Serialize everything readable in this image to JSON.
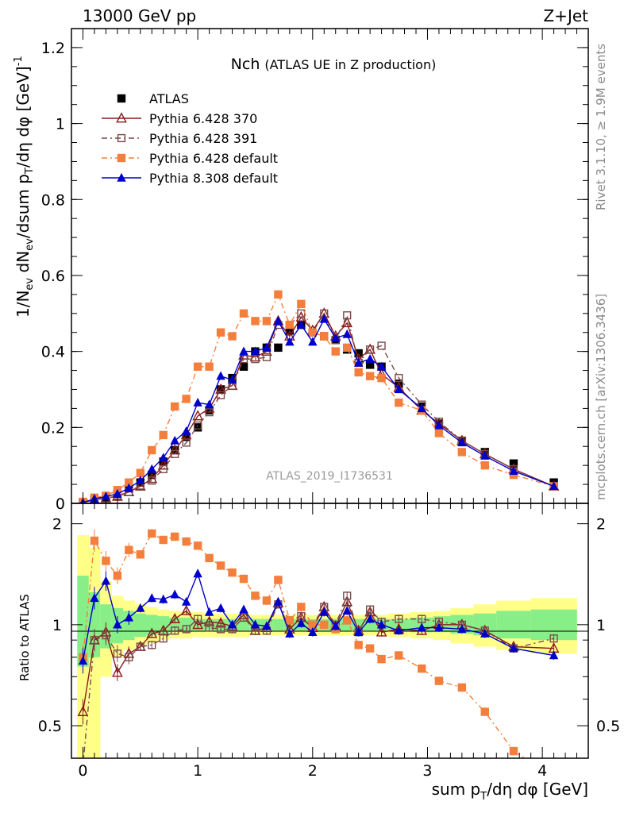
{
  "header": {
    "left": "13000 GeV pp",
    "right": "Z+Jet"
  },
  "side_labels": {
    "rivet": "Rivet 3.1.10, ≥ 1.9M events",
    "mcplots": "mcplots.cern.ch [arXiv:1306.3436]"
  },
  "analysis_id": "ATLAS_2019_I1736531",
  "chart_data": [
    {
      "type": "line",
      "panel": "main",
      "title": "Nch",
      "subtitle": "(ATLAS UE in Z production)",
      "ylabel": "1/N_ev dN_ev/dsum p_T/dη dφ [GeV]^-1",
      "xlim": [
        -0.1,
        4.4
      ],
      "ylim": [
        0,
        1.25
      ],
      "yticks": [
        "0",
        "0.2",
        "0.4",
        "0.6",
        "0.8",
        "1",
        "1.2"
      ],
      "legend_position": "top-left",
      "x": [
        0,
        0.1,
        0.2,
        0.3,
        0.4,
        0.5,
        0.6,
        0.7,
        0.8,
        0.9,
        1.0,
        1.1,
        1.2,
        1.3,
        1.4,
        1.5,
        1.6,
        1.7,
        1.8,
        1.9,
        2.0,
        2.1,
        2.2,
        2.3,
        2.4,
        2.5,
        2.6,
        2.75,
        2.95,
        3.1,
        3.3,
        3.5,
        3.75,
        4.1
      ],
      "series": [
        {
          "name": "ATLAS",
          "color": "#000000",
          "marker": "square-filled",
          "line": "none",
          "values": [
            0.003,
            0.01,
            0.015,
            0.025,
            0.04,
            0.055,
            0.075,
            0.11,
            0.14,
            0.175,
            0.2,
            0.245,
            0.3,
            0.33,
            0.36,
            0.4,
            0.41,
            0.41,
            0.455,
            0.47,
            0.45,
            0.44,
            0.43,
            0.405,
            0.395,
            0.365,
            0.36,
            0.315,
            0.255,
            0.21,
            0.165,
            0.135,
            0.105,
            0.055
          ]
        },
        {
          "name": "Pythia 6.428 370",
          "color": "#8b1a1a",
          "marker": "triangle-open",
          "line": "solid",
          "values": [
            0.002,
            0.009,
            0.014,
            0.018,
            0.03,
            0.045,
            0.065,
            0.1,
            0.14,
            0.18,
            0.23,
            0.25,
            0.3,
            0.31,
            0.39,
            0.385,
            0.4,
            0.48,
            0.44,
            0.49,
            0.455,
            0.5,
            0.44,
            0.475,
            0.38,
            0.405,
            0.34,
            0.305,
            0.245,
            0.21,
            0.165,
            0.13,
            0.09,
            0.045
          ]
        },
        {
          "name": "Pythia 6.428 391",
          "color": "#7a4a4a",
          "marker": "square-open",
          "line": "dashdot",
          "values": [
            0.001,
            0.01,
            0.013,
            0.02,
            0.03,
            0.047,
            0.06,
            0.09,
            0.13,
            0.16,
            0.205,
            0.24,
            0.285,
            0.31,
            0.38,
            0.38,
            0.385,
            0.47,
            0.47,
            0.5,
            0.45,
            0.5,
            0.43,
            0.495,
            0.37,
            0.405,
            0.415,
            0.33,
            0.26,
            0.215,
            0.165,
            0.13,
            0.09,
            0.045
          ]
        },
        {
          "name": "Pythia 6.428 default",
          "color": "#f47f3c",
          "marker": "square-filled",
          "line": "dashdot",
          "values": [
            0.004,
            0.015,
            0.02,
            0.035,
            0.055,
            0.08,
            0.14,
            0.18,
            0.255,
            0.275,
            0.36,
            0.36,
            0.45,
            0.44,
            0.5,
            0.48,
            0.48,
            0.55,
            0.47,
            0.525,
            0.45,
            0.44,
            0.4,
            0.41,
            0.345,
            0.335,
            0.33,
            0.265,
            0.245,
            0.185,
            0.135,
            0.1,
            0.075,
            0.045
          ]
        },
        {
          "name": "Pythia 8.308 default",
          "color": "#0000cc",
          "marker": "triangle-filled",
          "line": "solid",
          "values": [
            0.002,
            0.012,
            0.018,
            0.025,
            0.04,
            0.06,
            0.09,
            0.12,
            0.165,
            0.19,
            0.265,
            0.26,
            0.335,
            0.325,
            0.4,
            0.4,
            0.41,
            0.48,
            0.425,
            0.47,
            0.425,
            0.485,
            0.435,
            0.445,
            0.37,
            0.38,
            0.36,
            0.3,
            0.25,
            0.205,
            0.16,
            0.125,
            0.085,
            0.045
          ]
        }
      ]
    },
    {
      "type": "line",
      "panel": "ratio",
      "ylabel": "Ratio to ATLAS",
      "xlabel": "sum p_T/dη dφ [GeV]",
      "xlim": [
        -0.1,
        4.4
      ],
      "ylim": [
        0.4,
        2.3
      ],
      "yticks": [
        "0.5",
        "1",
        "2"
      ],
      "xticks": [
        "0",
        "1",
        "2",
        "3",
        "4"
      ],
      "x": [
        0,
        0.1,
        0.2,
        0.3,
        0.4,
        0.5,
        0.6,
        0.7,
        0.8,
        0.9,
        1.0,
        1.1,
        1.2,
        1.3,
        1.4,
        1.5,
        1.6,
        1.7,
        1.8,
        1.9,
        2.0,
        2.1,
        2.2,
        2.3,
        2.4,
        2.5,
        2.6,
        2.75,
        2.95,
        3.1,
        3.3,
        3.5,
        3.75,
        4.1
      ],
      "bands": {
        "x_edges": [
          -0.05,
          0.05,
          0.15,
          0.25,
          0.35,
          0.45,
          0.55,
          0.65,
          0.75,
          0.85,
          0.95,
          1.05,
          1.15,
          1.25,
          1.35,
          1.45,
          1.55,
          1.65,
          1.75,
          1.85,
          1.95,
          2.05,
          2.15,
          2.25,
          2.35,
          2.45,
          2.55,
          2.65,
          2.85,
          3.05,
          3.2,
          3.4,
          3.6,
          3.9,
          4.3
        ],
        "stat_lo": [
          0.75,
          0.8,
          0.85,
          0.88,
          0.9,
          0.92,
          0.93,
          0.94,
          0.95,
          0.95,
          0.96,
          0.96,
          0.96,
          0.96,
          0.96,
          0.96,
          0.96,
          0.96,
          0.96,
          0.96,
          0.96,
          0.96,
          0.96,
          0.96,
          0.96,
          0.96,
          0.96,
          0.96,
          0.95,
          0.95,
          0.94,
          0.93,
          0.91,
          0.9
        ],
        "stat_hi": [
          1.4,
          1.25,
          1.15,
          1.12,
          1.1,
          1.08,
          1.07,
          1.06,
          1.05,
          1.05,
          1.04,
          1.04,
          1.04,
          1.04,
          1.04,
          1.04,
          1.04,
          1.04,
          1.04,
          1.04,
          1.04,
          1.04,
          1.04,
          1.04,
          1.04,
          1.04,
          1.04,
          1.04,
          1.05,
          1.06,
          1.07,
          1.08,
          1.1,
          1.11
        ],
        "tot_lo": [
          0.35,
          0.4,
          0.7,
          0.8,
          0.84,
          0.86,
          0.88,
          0.9,
          0.91,
          0.91,
          0.92,
          0.92,
          0.92,
          0.92,
          0.92,
          0.93,
          0.93,
          0.93,
          0.93,
          0.93,
          0.93,
          0.93,
          0.93,
          0.93,
          0.93,
          0.93,
          0.93,
          0.92,
          0.91,
          0.9,
          0.88,
          0.86,
          0.84,
          0.82
        ],
        "tot_hi": [
          1.85,
          1.7,
          1.35,
          1.22,
          1.18,
          1.15,
          1.13,
          1.11,
          1.1,
          1.09,
          1.09,
          1.08,
          1.08,
          1.08,
          1.08,
          1.07,
          1.07,
          1.07,
          1.07,
          1.07,
          1.07,
          1.07,
          1.07,
          1.07,
          1.07,
          1.07,
          1.07,
          1.08,
          1.09,
          1.1,
          1.12,
          1.15,
          1.18,
          1.2
        ]
      },
      "series": [
        {
          "name": "Pythia 6.428 370",
          "color": "#8b1a1a",
          "marker": "triangle-open",
          "line": "solid",
          "values": [
            0.55,
            0.9,
            0.95,
            0.72,
            0.82,
            0.86,
            0.94,
            0.96,
            1.04,
            1.1,
            1.0,
            1.02,
            1.01,
            0.99,
            1.07,
            0.96,
            0.98,
            1.16,
            0.97,
            1.05,
            0.98,
            1.13,
            0.99,
            1.17,
            0.96,
            1.09,
            0.95,
            0.97,
            0.96,
            1.0,
            1.0,
            0.96,
            0.86,
            0.85
          ]
        },
        {
          "name": "Pythia 6.428 391",
          "color": "#7a4a4a",
          "marker": "square-open",
          "line": "dashdot",
          "values": [
            0.38,
            0.9,
            0.93,
            0.82,
            0.8,
            0.86,
            0.87,
            0.91,
            0.96,
            0.97,
            1.04,
            0.98,
            0.97,
            0.97,
            1.05,
            0.96,
            0.96,
            1.15,
            1.03,
            1.06,
            1.0,
            1.13,
            1.0,
            1.22,
            0.95,
            1.11,
            1.02,
            1.04,
            1.04,
            1.02,
            1.0,
            0.96,
            0.85,
            0.91
          ]
        },
        {
          "name": "Pythia 6.428 default",
          "color": "#f47f3c",
          "marker": "square-filled",
          "line": "dashdot",
          "values": [
            0.8,
            1.78,
            1.55,
            1.4,
            1.67,
            1.62,
            1.87,
            1.79,
            1.83,
            1.77,
            1.72,
            1.58,
            1.5,
            1.43,
            1.37,
            1.22,
            1.18,
            1.36,
            1.03,
            1.13,
            1.0,
            1.0,
            0.97,
            1.03,
            0.87,
            0.85,
            0.79,
            0.81,
            0.74,
            0.68,
            0.65,
            0.55,
            0.42,
            0.35
          ]
        },
        {
          "name": "Pythia 8.308 default",
          "color": "#0000cc",
          "marker": "triangle-filled",
          "line": "solid",
          "values": [
            0.78,
            1.2,
            1.35,
            1.0,
            1.05,
            1.12,
            1.2,
            1.19,
            1.23,
            1.17,
            1.42,
            1.09,
            1.12,
            1.0,
            1.11,
            1.0,
            0.99,
            1.17,
            0.94,
            1.01,
            0.95,
            1.09,
            0.99,
            1.1,
            0.95,
            1.04,
            1.0,
            0.96,
            0.98,
            0.98,
            0.97,
            0.94,
            0.85,
            0.81
          ]
        }
      ]
    }
  ]
}
